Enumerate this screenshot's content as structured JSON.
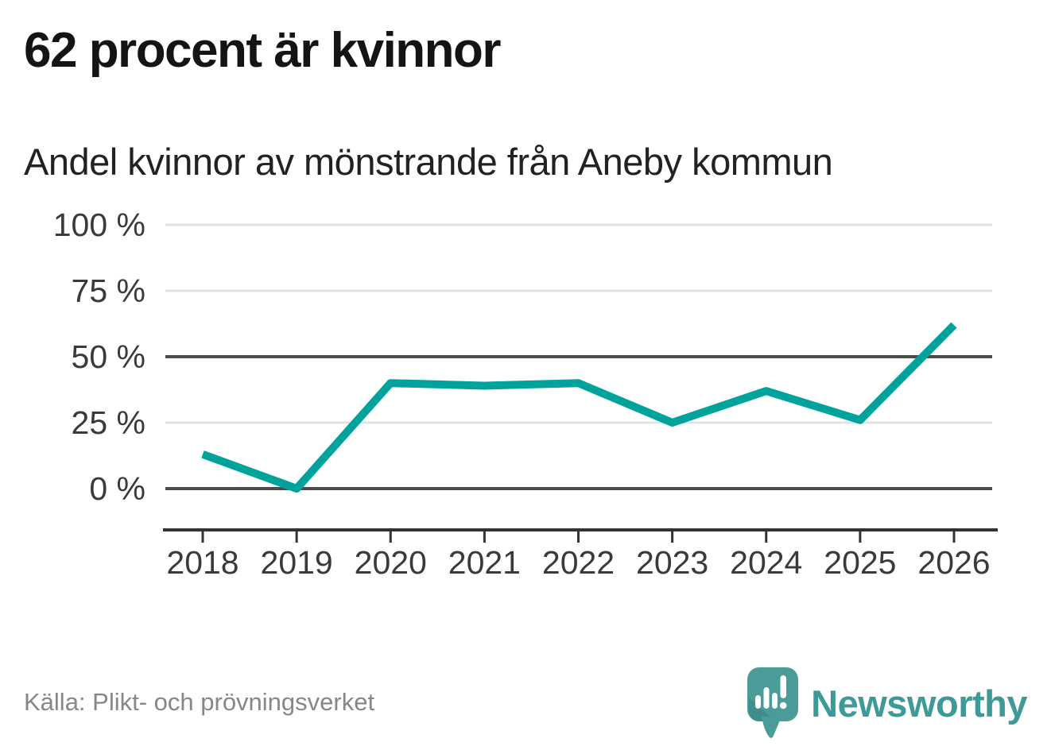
{
  "header": {
    "title": "62 procent är kvinnor",
    "subtitle": "Andel kvinnor av mönstrande från Aneby kommun"
  },
  "chart_data": {
    "type": "line",
    "title": "62 procent är kvinnor",
    "subtitle": "Andel kvinnor av mönstrande från Aneby kommun",
    "x": [
      "2018",
      "2019",
      "2020",
      "2021",
      "2022",
      "2023",
      "2024",
      "2025",
      "2026"
    ],
    "series": [
      {
        "name": "Andel kvinnor av mönstrande",
        "values": [
          13,
          0,
          40,
          39,
          40,
          25,
          37,
          26,
          62
        ]
      }
    ],
    "unit": "%",
    "xlabel": "",
    "ylabel": "",
    "ylim": [
      0,
      100
    ],
    "yticks": [
      0,
      25,
      50,
      75,
      100
    ],
    "ytick_format": "{v} %",
    "grid": true,
    "strong_gridlines": [
      0,
      50
    ],
    "legend": "none",
    "colors": {
      "line": "#00a39c",
      "grid_light": "#e2e2e2",
      "grid_strong": "#4b4b4b",
      "axis": "#333333",
      "tick_text": "#3a3a3a"
    }
  },
  "footer": {
    "source": "Källa: Plikt- och prövningsverket",
    "brand": "Newsworthy",
    "brand_color": "#3d9a96",
    "logo_icon": "newsworthy-speech-bubble-chart-icon",
    "logo_colors": {
      "bubble": "#4a9c98",
      "bubble_shade": "#3f8e8b",
      "glyph": "#ffffff"
    }
  }
}
